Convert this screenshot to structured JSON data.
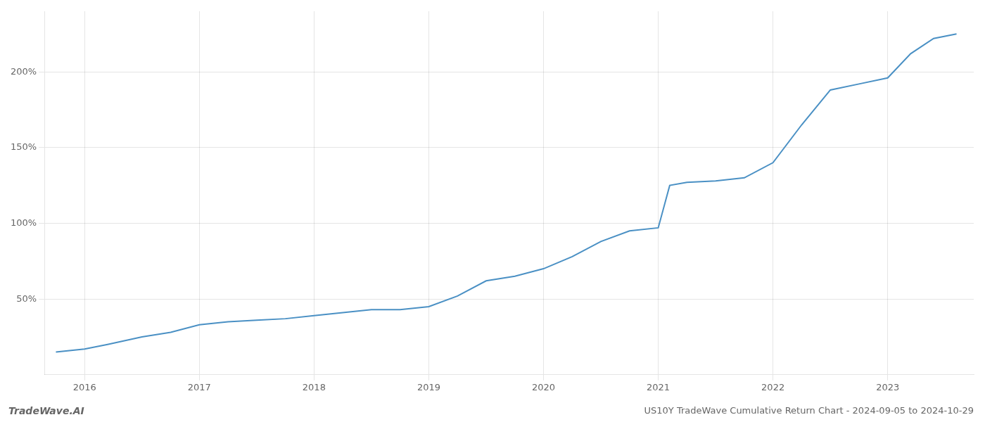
{
  "chart_data": {
    "type": "line",
    "title": "US10Y TradeWave Cumulative Return Chart - 2024-09-05 to 2024-10-29",
    "annotation": "TradeWave.AI",
    "x": [
      2015.75,
      2016.0,
      2016.2,
      2016.5,
      2016.75,
      2017.0,
      2017.25,
      2017.5,
      2017.75,
      2018.0,
      2018.25,
      2018.5,
      2018.6,
      2018.75,
      2019.0,
      2019.25,
      2019.5,
      2019.75,
      2020.0,
      2020.25,
      2020.5,
      2020.75,
      2021.0,
      2021.1,
      2021.25,
      2021.5,
      2021.75,
      2022.0,
      2022.25,
      2022.5,
      2022.75,
      2023.0,
      2023.2,
      2023.4,
      2023.6
    ],
    "values": [
      15,
      17,
      20,
      25,
      28,
      33,
      35,
      36,
      37,
      39,
      41,
      43,
      43,
      43,
      45,
      52,
      62,
      65,
      70,
      78,
      88,
      95,
      97,
      125,
      127,
      128,
      130,
      140,
      165,
      188,
      192,
      196,
      212,
      222,
      225
    ],
    "color": "#4a90c4",
    "xlim": [
      2015.65,
      2023.75
    ],
    "xticks": [
      2016,
      2017,
      2018,
      2019,
      2020,
      2021,
      2022,
      2023
    ],
    "ylim": [
      0,
      240
    ],
    "yticks": [
      {
        "value": 50,
        "label": "50%"
      },
      {
        "value": 100,
        "label": "100%"
      },
      {
        "value": 150,
        "label": "150%"
      },
      {
        "value": 200,
        "label": "200%"
      }
    ],
    "grid": true
  }
}
